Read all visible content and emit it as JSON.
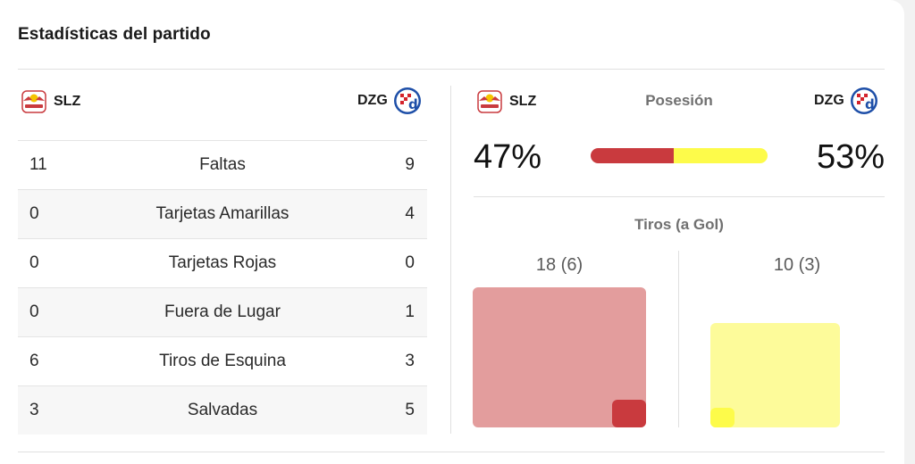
{
  "title": "Estadísticas del partido",
  "home": {
    "abbr": "SLZ",
    "crest": "red-bull-salzburg-crest",
    "color": "#c93a3e",
    "light_color": "#e39d9d"
  },
  "away": {
    "abbr": "DZG",
    "crest": "dinamo-zagreb-crest",
    "color": "#fdfb4a",
    "light_color": "#fdfb9a"
  },
  "stats": [
    {
      "home": "11",
      "label": "Faltas",
      "away": "9"
    },
    {
      "home": "0",
      "label": "Tarjetas Amarillas",
      "away": "4"
    },
    {
      "home": "0",
      "label": "Tarjetas Rojas",
      "away": "0"
    },
    {
      "home": "0",
      "label": "Fuera de Lugar",
      "away": "1"
    },
    {
      "home": "6",
      "label": "Tiros de Esquina",
      "away": "3"
    },
    {
      "home": "3",
      "label": "Salvadas",
      "away": "5"
    }
  ],
  "possession": {
    "label": "Posesión",
    "home_text": "47%",
    "away_text": "53%",
    "home_fraction": 0.47,
    "away_fraction": 0.53
  },
  "shots": {
    "label": "Tiros (a Gol)",
    "home_text": "18 (6)",
    "away_text": "10 (3)",
    "home_total": 18,
    "home_on_target": 6,
    "away_total": 10,
    "away_on_target": 3
  }
}
